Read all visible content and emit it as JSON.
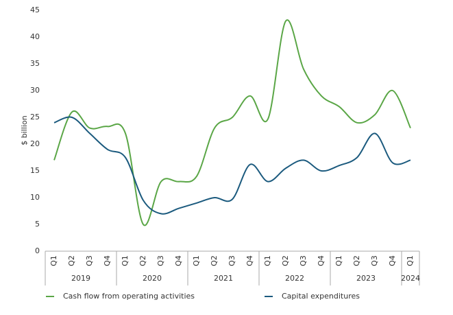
{
  "chart_data": {
    "type": "line",
    "y_label": "$ billion",
    "categories": [
      "Q1",
      "Q2",
      "Q3",
      "Q4",
      "Q1",
      "Q2",
      "Q3",
      "Q4",
      "Q1",
      "Q2",
      "Q3",
      "Q4",
      "Q1",
      "Q2",
      "Q3",
      "Q4",
      "Q1",
      "Q2",
      "Q3",
      "Q4",
      "Q1"
    ],
    "x_groups": [
      "2019",
      "2020",
      "2021",
      "2022",
      "2023",
      "2024"
    ],
    "series": [
      {
        "name": "Cash flow from operating activities",
        "color": "#5aa646",
        "values": [
          17,
          26,
          23,
          23.3,
          22,
          5,
          13,
          13,
          14,
          23,
          25,
          29,
          24.7,
          43,
          34,
          29,
          27,
          24,
          25.5,
          30,
          23
        ]
      },
      {
        "name": "Capital expenditures",
        "color": "#1b5a7e",
        "values": [
          24,
          25,
          22,
          19,
          17.5,
          9.5,
          7,
          8,
          9,
          10,
          9.7,
          16.2,
          13,
          15.5,
          17,
          15,
          16,
          17.5,
          22,
          16.5,
          17
        ]
      }
    ],
    "ylim": [
      0,
      45
    ],
    "yticks": [
      0,
      5,
      10,
      15,
      20,
      25,
      30,
      35,
      40,
      45
    ],
    "grid": false
  }
}
